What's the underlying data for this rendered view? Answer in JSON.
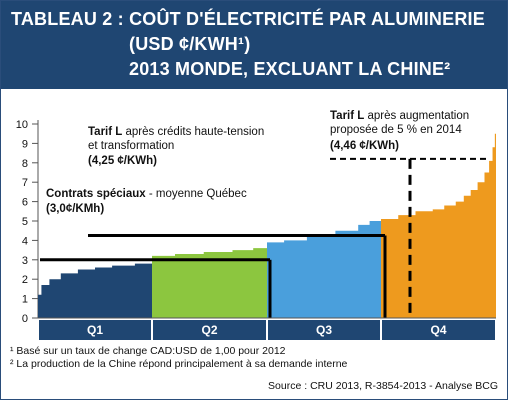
{
  "header": {
    "line1": "TABLEAU 2 : COÛT D'ÉLECTRICITÉ PAR ALUMINERIE",
    "line2": "(USD ¢/KWH¹)",
    "line3": "2013 MONDE, EXCLUANT LA CHINE²"
  },
  "chart_data": {
    "type": "area",
    "ylim": [
      0,
      10
    ],
    "yticks": [
      "0",
      "1",
      "2",
      "3",
      "4",
      "5",
      "6",
      "7",
      "8",
      "9",
      "10"
    ],
    "quartiles": [
      "Q1",
      "Q2",
      "Q3",
      "Q4"
    ],
    "quartile_colors": [
      "#1f4672",
      "#8cc63f",
      "#4a9fdc",
      "#ee9a1e"
    ],
    "steps": [
      [
        [
          0,
          1.2
        ],
        [
          0.03,
          1.7
        ],
        [
          0.1,
          2.0
        ],
        [
          0.2,
          2.3
        ],
        [
          0.35,
          2.5
        ],
        [
          0.5,
          2.6
        ],
        [
          0.65,
          2.7
        ],
        [
          0.85,
          2.8
        ],
        [
          1,
          3.0
        ]
      ],
      [
        [
          0,
          3.2
        ],
        [
          0.2,
          3.3
        ],
        [
          0.45,
          3.4
        ],
        [
          0.7,
          3.5
        ],
        [
          0.88,
          3.6
        ],
        [
          1,
          3.8
        ]
      ],
      [
        [
          0,
          3.9
        ],
        [
          0.15,
          4.0
        ],
        [
          0.35,
          4.2
        ],
        [
          0.6,
          4.5
        ],
        [
          0.8,
          4.8
        ],
        [
          0.9,
          5.0
        ],
        [
          1,
          5.0
        ]
      ],
      [
        [
          0,
          5.1
        ],
        [
          0.15,
          5.3
        ],
        [
          0.3,
          5.5
        ],
        [
          0.45,
          5.6
        ],
        [
          0.55,
          5.8
        ],
        [
          0.65,
          6.0
        ],
        [
          0.72,
          6.3
        ],
        [
          0.78,
          6.6
        ],
        [
          0.84,
          7.0
        ],
        [
          0.9,
          7.5
        ],
        [
          0.94,
          8.1
        ],
        [
          0.97,
          8.8
        ],
        [
          0.99,
          9.5
        ],
        [
          1,
          10.0
        ]
      ]
    ],
    "reference_lines": [
      {
        "label_bold": "Contrats spéciaux",
        "label_rest": " - moyenne Québec",
        "value_text": "(3,0¢/KMh)",
        "value": 3.0
      },
      {
        "label_bold": "Tarif L",
        "label_rest": " après crédits haute-tension",
        "label_line2": "et transformation",
        "value_text": "(4,25 ¢/KWh)",
        "value": 4.25
      },
      {
        "label_bold": "Tarif L",
        "label_rest": " après augmentation",
        "label_line2": "proposée de 5 % en 2014",
        "value_text": "(4,46 ¢/KWh)",
        "value": 4.46
      }
    ]
  },
  "notes": [
    "¹ Basé sur un taux de change CAD:USD de 1,00 pour 2012",
    "² La production de la Chine répond principalement à sa demande interne"
  ],
  "source": "Source : CRU 2013, R-3854-2013 - Analyse BCG"
}
